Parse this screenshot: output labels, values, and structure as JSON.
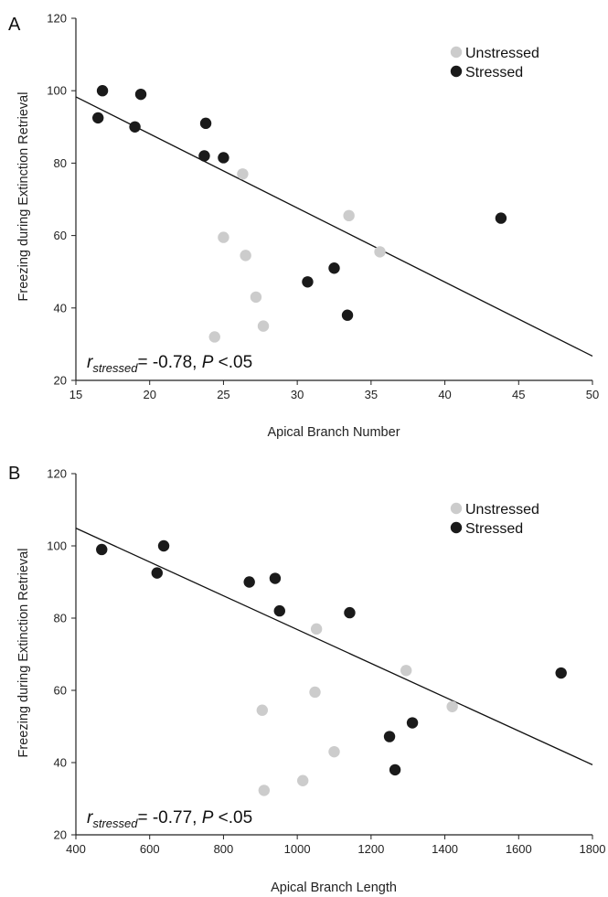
{
  "chart_data": [
    {
      "type": "scatter",
      "panel_label": "A",
      "xlabel": "Apical Branch Number",
      "ylabel": "Freezing during Extinction Retrieval",
      "xlim": [
        15,
        50
      ],
      "ylim": [
        20,
        120
      ],
      "x_ticks": [
        "15",
        "20",
        "25",
        "30",
        "35",
        "40",
        "45",
        "50"
      ],
      "y_ticks": [
        "20",
        "40",
        "60",
        "80",
        "100",
        "120"
      ],
      "legend_position": "top-right",
      "grid": false,
      "series": [
        {
          "name": "Unstressed",
          "color": "#cccccc",
          "points": [
            {
              "x": 24.4,
              "y": 32
            },
            {
              "x": 25.0,
              "y": 59.5
            },
            {
              "x": 26.3,
              "y": 77
            },
            {
              "x": 26.5,
              "y": 54.5
            },
            {
              "x": 27.2,
              "y": 43
            },
            {
              "x": 27.7,
              "y": 35
            },
            {
              "x": 33.5,
              "y": 65.5
            },
            {
              "x": 35.6,
              "y": 55.5
            }
          ]
        },
        {
          "name": "Stressed",
          "color": "#1a1a1a",
          "points": [
            {
              "x": 16.5,
              "y": 92.5
            },
            {
              "x": 16.8,
              "y": 100
            },
            {
              "x": 19.0,
              "y": 90
            },
            {
              "x": 19.4,
              "y": 99
            },
            {
              "x": 23.7,
              "y": 82
            },
            {
              "x": 23.8,
              "y": 91
            },
            {
              "x": 25.0,
              "y": 81.5
            },
            {
              "x": 30.7,
              "y": 47.2
            },
            {
              "x": 32.5,
              "y": 51
            },
            {
              "x": 33.4,
              "y": 38
            },
            {
              "x": 43.8,
              "y": 64.8
            }
          ]
        }
      ],
      "regression_line": {
        "x": [
          15,
          50
        ],
        "y": [
          98.3,
          26.7
        ]
      },
      "annotation": {
        "r": "r",
        "sub": "stressed",
        "text": "= -0.78, ",
        "p": "P",
        "rest": " <.05"
      }
    },
    {
      "type": "scatter",
      "panel_label": "B",
      "xlabel": "Apical Branch Length",
      "ylabel": "Freezing during Extinction Retrieval",
      "xlim": [
        400,
        1800
      ],
      "ylim": [
        20,
        120
      ],
      "x_ticks": [
        "400",
        "600",
        "800",
        "1000",
        "1200",
        "1400",
        "1600",
        "1800"
      ],
      "y_ticks": [
        "20",
        "40",
        "60",
        "80",
        "100",
        "120"
      ],
      "legend_position": "top-right",
      "grid": false,
      "series": [
        {
          "name": "Unstressed",
          "color": "#cccccc",
          "points": [
            {
              "x": 905,
              "y": 54.5
            },
            {
              "x": 910,
              "y": 32.3
            },
            {
              "x": 1015,
              "y": 35
            },
            {
              "x": 1048,
              "y": 59.5
            },
            {
              "x": 1052,
              "y": 77
            },
            {
              "x": 1100,
              "y": 43
            },
            {
              "x": 1295,
              "y": 65.5
            },
            {
              "x": 1420,
              "y": 55.5
            }
          ]
        },
        {
          "name": "Stressed",
          "color": "#1a1a1a",
          "points": [
            {
              "x": 470,
              "y": 99
            },
            {
              "x": 620,
              "y": 92.5
            },
            {
              "x": 638,
              "y": 100
            },
            {
              "x": 870,
              "y": 90
            },
            {
              "x": 940,
              "y": 91
            },
            {
              "x": 952,
              "y": 82
            },
            {
              "x": 1142,
              "y": 81.5
            },
            {
              "x": 1250,
              "y": 47.2
            },
            {
              "x": 1265,
              "y": 38
            },
            {
              "x": 1312,
              "y": 51
            },
            {
              "x": 1715,
              "y": 64.8
            }
          ]
        }
      ],
      "regression_line": {
        "x": [
          400,
          1800
        ],
        "y": [
          104.9,
          39.4
        ]
      },
      "annotation": {
        "r": "r",
        "sub": "stressed",
        "text": "= -0.77, ",
        "p": "P",
        "rest": " <.05"
      }
    }
  ]
}
